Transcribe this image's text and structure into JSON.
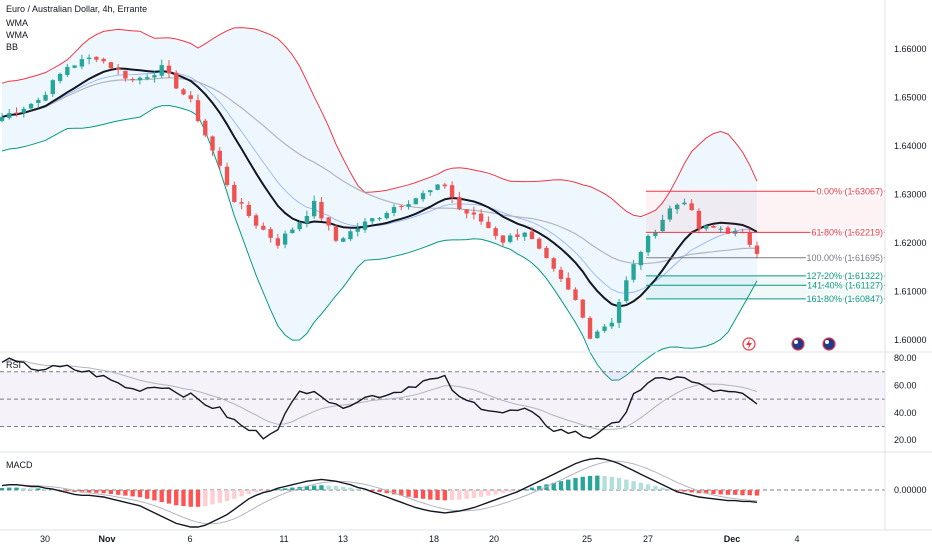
{
  "legend": {
    "symbol": "Euro / Australian Dollar, 4h, Errante",
    "ind1": "WMA",
    "ind2": "WMA",
    "ind3": "BB"
  },
  "panes": {
    "rsi_label": "RSI",
    "macd_label": "MACD"
  },
  "colors": {
    "up": "#26a69a",
    "down": "#ef5350",
    "bb_upper": "#f23645",
    "bb_lower": "#089981",
    "bb_fill": "#e3f2fd",
    "wma_fast": "#131722",
    "wma_slow": "#b2b5be",
    "fib_red": "#f23645",
    "fib_gray": "#787b86",
    "fib_green": "#089981"
  },
  "chart_data": {
    "type": "candlestick",
    "price_axis": [
      "1.66000",
      "1.65000",
      "1.64000",
      "1.63000",
      "1.62000",
      "1.61000",
      "1.60000"
    ],
    "price_ylim": [
      1.5975,
      1.6685
    ],
    "x_ticks": [
      "30",
      "Nov",
      "6",
      "11",
      "13",
      "18",
      "20",
      "25",
      "27",
      "Dec",
      "4"
    ],
    "fib_levels": [
      {
        "label": "0.00% (1.63067)",
        "value": 1.63067,
        "color": "#f23645"
      },
      {
        "label": "61.80% (1.62219)",
        "value": 1.62219,
        "color": "#f23645"
      },
      {
        "label": "100.00% (1.61695)",
        "value": 1.61695,
        "color": "#787b86"
      },
      {
        "label": "127.20% (1.61322)",
        "value": 1.61322,
        "color": "#089981"
      },
      {
        "label": "141.40% (1.61127)",
        "value": 1.61127,
        "color": "#089981"
      },
      {
        "label": "161.80% (1.60847)",
        "value": 1.60847,
        "color": "#089981"
      }
    ],
    "rsi_axis": [
      "80.00",
      "60.00",
      "40.00",
      "20.00"
    ],
    "rsi_ylim": [
      15,
      83
    ],
    "rsi_bands": [
      70,
      50,
      30
    ],
    "macd_axis": [
      "0.00000"
    ],
    "close_path": [
      [
        0,
        1.646
      ],
      [
        5,
        1.6495
      ],
      [
        9,
        1.6565
      ],
      [
        13,
        1.6585
      ],
      [
        18,
        1.6535
      ],
      [
        22,
        1.656
      ],
      [
        26,
        1.649
      ],
      [
        29,
        1.639
      ],
      [
        32,
        1.629
      ],
      [
        35,
        1.624
      ],
      [
        38,
        1.62
      ],
      [
        41,
        1.6245
      ],
      [
        43,
        1.628
      ],
      [
        46,
        1.6205
      ],
      [
        50,
        1.624
      ],
      [
        54,
        1.6275
      ],
      [
        58,
        1.63
      ],
      [
        61,
        1.632
      ],
      [
        63,
        1.627
      ],
      [
        66,
        1.6245
      ],
      [
        69,
        1.6205
      ],
      [
        72,
        1.6225
      ],
      [
        76,
        1.614
      ],
      [
        79,
        1.608
      ],
      [
        81,
        1.601
      ],
      [
        84,
        1.604
      ],
      [
        86,
        1.612
      ],
      [
        88,
        1.6185
      ],
      [
        90,
        1.623
      ],
      [
        92,
        1.627
      ],
      [
        94,
        1.629
      ],
      [
        96,
        1.623
      ],
      [
        99,
        1.623
      ],
      [
        102,
        1.6215
      ],
      [
        104,
        1.6185
      ]
    ],
    "rsi_path": [
      [
        0,
        79
      ],
      [
        5,
        72
      ],
      [
        9,
        73
      ],
      [
        13,
        68
      ],
      [
        18,
        57
      ],
      [
        22,
        60
      ],
      [
        26,
        52
      ],
      [
        30,
        42
      ],
      [
        33,
        30
      ],
      [
        36,
        23
      ],
      [
        38,
        30
      ],
      [
        41,
        55
      ],
      [
        43,
        58
      ],
      [
        46,
        44
      ],
      [
        50,
        51
      ],
      [
        54,
        55
      ],
      [
        58,
        63
      ],
      [
        61,
        65
      ],
      [
        63,
        50
      ],
      [
        66,
        45
      ],
      [
        69,
        40
      ],
      [
        72,
        42
      ],
      [
        76,
        28
      ],
      [
        79,
        25
      ],
      [
        81,
        22
      ],
      [
        83,
        30
      ],
      [
        85,
        31
      ],
      [
        87,
        55
      ],
      [
        90,
        63
      ],
      [
        93,
        67
      ],
      [
        96,
        60
      ],
      [
        99,
        55
      ],
      [
        102,
        53
      ],
      [
        104,
        46
      ]
    ],
    "macd_hist": [
      5,
      6,
      6,
      5,
      4,
      4,
      2,
      1,
      -1,
      -3,
      -5,
      -6,
      -6,
      -7,
      -8,
      -10,
      -12,
      -14,
      -16,
      -18,
      -22,
      -26,
      -30,
      -34,
      -38,
      -40,
      -42,
      -42,
      -40,
      -36,
      -32,
      -28,
      -22,
      -16,
      -10,
      -6,
      -3,
      -1,
      2,
      4,
      6,
      8,
      10,
      11,
      12,
      11,
      10,
      8,
      6,
      3,
      1,
      -2,
      -5,
      -8,
      -11,
      -14,
      -17,
      -20,
      -22,
      -24,
      -25,
      -26,
      -25,
      -24,
      -22,
      -20,
      -17,
      -14,
      -11,
      -8,
      -5,
      -2,
      2,
      6,
      10,
      14,
      18,
      22,
      26,
      30,
      33,
      35,
      36,
      35,
      33,
      30,
      26,
      22,
      18,
      14,
      10,
      6,
      2,
      -2,
      -4,
      -6,
      -8,
      -9,
      -10,
      -11,
      -12,
      -12,
      -13,
      -13,
      -14
    ]
  }
}
